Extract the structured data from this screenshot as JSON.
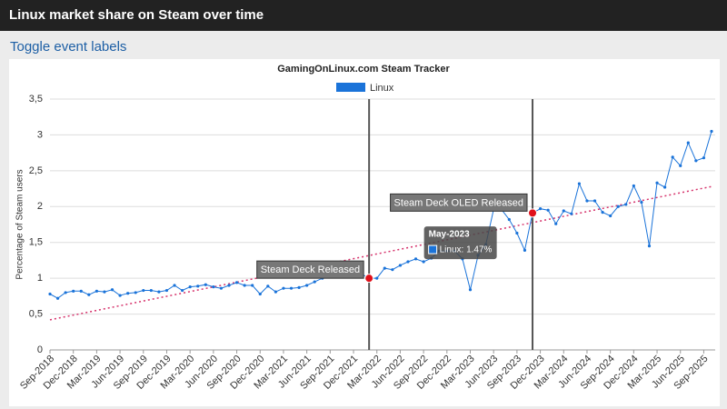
{
  "header": {
    "title": "Linux market share on Steam over time",
    "toggle": "Toggle event labels"
  },
  "chart_data": {
    "type": "line",
    "title": "GamingOnLinux.com Steam Tracker",
    "ylabel": "Percentage of Steam users",
    "categories": [
      "Sep-2018",
      null,
      null,
      "Dec-2018",
      null,
      null,
      "Mar-2019",
      null,
      null,
      "Jun-2019",
      null,
      null,
      "Sep-2019",
      null,
      null,
      "Dec-2019",
      null,
      null,
      "Mar-2020",
      null,
      null,
      "Jun-2020",
      null,
      null,
      "Sep-2020",
      null,
      null,
      "Dec-2020",
      null,
      null,
      "Mar-2021",
      null,
      null,
      "Jun-2021",
      null,
      null,
      "Sep-2021",
      null,
      null,
      "Dec-2021",
      null,
      null,
      "Mar-2022",
      null,
      null,
      "Jun-2022",
      null,
      null,
      "Sep-2022",
      null,
      null,
      "Dec-2022",
      null,
      null,
      "Mar-2023",
      null,
      null,
      "Jun-2023",
      null,
      null,
      "Sep-2023",
      null,
      null,
      "Dec-2023",
      null,
      null,
      "Mar-2024",
      null,
      null,
      "Jun-2024",
      null,
      null,
      "Sep-2024",
      null,
      null,
      "Dec-2024",
      null,
      null,
      "Mar-2025",
      null,
      null,
      "Jun-2025",
      null,
      null,
      "Sep-2025",
      null
    ],
    "series": [
      {
        "name": "Linux",
        "color": "#1a73d9",
        "values": [
          0.78,
          0.72,
          0.8,
          0.82,
          0.82,
          0.77,
          0.82,
          0.81,
          0.84,
          0.76,
          0.79,
          0.8,
          0.83,
          0.83,
          0.81,
          0.83,
          0.9,
          0.83,
          0.88,
          0.89,
          0.91,
          0.88,
          0.86,
          0.9,
          0.94,
          0.9,
          0.9,
          0.78,
          0.89,
          0.81,
          0.86,
          0.86,
          0.87,
          0.9,
          0.95,
          1.0,
          1.07,
          1.13,
          1.16,
          1.14,
          1.06,
          1.0,
          1.0,
          1.14,
          1.12,
          1.18,
          1.23,
          1.27,
          1.23,
          1.28,
          1.38,
          1.38,
          1.38,
          1.27,
          0.84,
          1.32,
          1.47,
          1.96,
          1.96,
          1.82,
          1.63,
          1.39,
          1.91,
          1.97,
          1.95,
          1.76,
          1.94,
          1.9,
          2.32,
          2.08,
          2.08,
          1.92,
          1.87,
          2.0,
          2.03,
          2.29,
          2.06,
          1.45,
          2.33,
          2.27,
          2.69,
          2.57,
          2.89,
          2.64,
          2.68,
          3.05
        ]
      }
    ],
    "ylim": [
      0,
      3.5
    ],
    "yticks": [
      0,
      {
        "value": 0.5,
        "label": "0,5"
      },
      1,
      {
        "value": 1.5,
        "label": "1,5"
      },
      2,
      {
        "value": 2.5,
        "label": "2,5"
      },
      3,
      {
        "value": 3.5,
        "label": "3,5"
      }
    ],
    "grid": true,
    "legend": "top",
    "trendline": {
      "color": "#d6336c",
      "values": [
        0.42,
        2.28
      ]
    },
    "events": [
      {
        "label": "Steam Deck Released",
        "at": 41
      },
      {
        "label": "Steam Deck OLED Released",
        "at": 62
      }
    ],
    "tooltip": {
      "title": "May-2023",
      "text": "Linux: 1.47%",
      "at": 56
    }
  }
}
